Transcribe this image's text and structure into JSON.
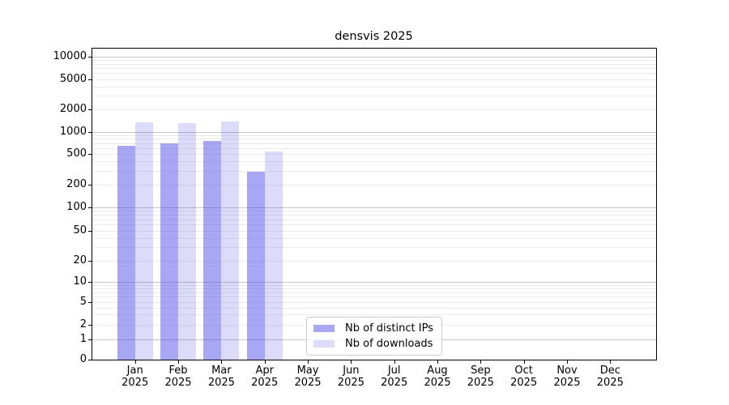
{
  "title": "densvis 2025",
  "legend": {
    "items": [
      {
        "label": "Nb of distinct IPs",
        "color": "rgba(60,60,230,0.45)"
      },
      {
        "label": "Nb of downloads",
        "color": "rgba(60,60,230,0.18)"
      }
    ]
  },
  "colors": {
    "bar_distinct_ips": "rgba(60,60,230,0.45)",
    "bar_downloads": "rgba(60,60,230,0.18)",
    "grid_major": "#c6c6c6",
    "grid_minor": "#ebebeb",
    "axis": "#000000"
  },
  "chart_data": {
    "type": "bar",
    "title": "densvis 2025",
    "categories": [
      "Jan 2025",
      "Feb 2025",
      "Mar 2025",
      "Apr 2025",
      "May 2025",
      "Jun 2025",
      "Jul 2025",
      "Aug 2025",
      "Sep 2025",
      "Oct 2025",
      "Nov 2025",
      "Dec 2025"
    ],
    "series": [
      {
        "name": "Nb of distinct IPs",
        "values": [
          660,
          710,
          770,
          300,
          0,
          0,
          0,
          0,
          0,
          0,
          0,
          0
        ]
      },
      {
        "name": "Nb of downloads",
        "values": [
          1380,
          1340,
          1390,
          560,
          0,
          0,
          0,
          0,
          0,
          0,
          0,
          0
        ]
      }
    ],
    "xlabel": "",
    "ylabel": "",
    "yscale": "symlog",
    "y_ticks": [
      0,
      1,
      2,
      5,
      10,
      20,
      50,
      100,
      200,
      500,
      1000,
      2000,
      5000,
      10000
    ],
    "ylim": [
      0,
      13000
    ],
    "grid": true,
    "grid_which": "both",
    "legend_position": "lower center"
  }
}
